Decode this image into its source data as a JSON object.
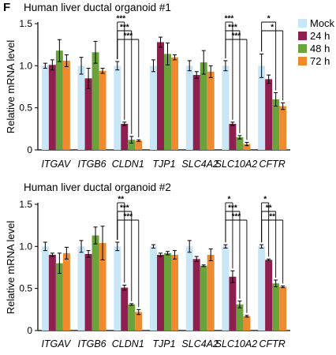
{
  "panel_label": "F",
  "colors": {
    "Mock": "#c9e6f7",
    "24 h": "#8e1f4f",
    "48 h": "#6aa23c",
    "72 h": "#f08a2e"
  },
  "legend": [
    "Mock",
    "24 h",
    "48 h",
    "72 h"
  ],
  "chart_data": [
    {
      "type": "bar",
      "title": "Human liver ductal organoid #1",
      "ylabel": "Relative mRNA level",
      "ylim": [
        0,
        1.5
      ],
      "yticks": [
        "0",
        "0.5",
        "1.0",
        "1.5"
      ],
      "categories": [
        "ITGAV",
        "ITGB6",
        "CLDN1",
        "TJP1",
        "SLC4A2",
        "SLC10A2",
        "CFTR"
      ],
      "series": [
        {
          "name": "Mock",
          "values": [
            1.0,
            1.0,
            1.0,
            1.0,
            1.0,
            1.0,
            1.0
          ],
          "errors": [
            0.03,
            0.1,
            0.05,
            0.07,
            0.06,
            0.06,
            0.14
          ]
        },
        {
          "name": "24 h",
          "values": [
            1.01,
            0.85,
            0.31,
            1.28,
            0.89,
            0.31,
            0.84
          ],
          "errors": [
            0.06,
            0.12,
            0.02,
            0.06,
            0.04,
            0.02,
            0.05
          ]
        },
        {
          "name": "48 h",
          "values": [
            1.18,
            1.16,
            0.12,
            1.14,
            1.04,
            0.15,
            0.6
          ],
          "errors": [
            0.13,
            0.13,
            0.04,
            0.13,
            0.14,
            0.02,
            0.08
          ]
        },
        {
          "name": "72 h",
          "values": [
            1.06,
            0.94,
            0.11,
            1.1,
            0.93,
            0.07,
            0.52
          ],
          "errors": [
            0.07,
            0.03,
            0.01,
            0.03,
            0.07,
            0.02,
            0.04
          ]
        }
      ],
      "significance": [
        {
          "category": "CLDN1",
          "compare": "24 h",
          "label": "***"
        },
        {
          "category": "CLDN1",
          "compare": "48 h",
          "label": "***"
        },
        {
          "category": "CLDN1",
          "compare": "72 h",
          "label": "***"
        },
        {
          "category": "SLC10A2",
          "compare": "24 h",
          "label": "***"
        },
        {
          "category": "SLC10A2",
          "compare": "48 h",
          "label": "***"
        },
        {
          "category": "SLC10A2",
          "compare": "72 h",
          "label": "***"
        },
        {
          "category": "CFTR",
          "compare": "48 h",
          "label": "*"
        },
        {
          "category": "CFTR",
          "compare": "72 h",
          "label": "*"
        }
      ]
    },
    {
      "type": "bar",
      "title": "Human liver ductal organoid #2",
      "ylabel": "Relative mRNA level",
      "ylim": [
        0,
        1.5
      ],
      "yticks": [
        "0",
        "0.5",
        "1.0",
        "1.5"
      ],
      "categories": [
        "ITGAV",
        "ITGB6",
        "CLDN1",
        "TJP1",
        "SLC4A2",
        "SLC10A2",
        "CFTR"
      ],
      "series": [
        {
          "name": "Mock",
          "values": [
            1.0,
            1.0,
            1.0,
            1.0,
            1.0,
            1.0,
            1.0
          ],
          "errors": [
            0.05,
            0.07,
            0.05,
            0.02,
            0.07,
            0.02,
            0.02
          ]
        },
        {
          "name": "24 h",
          "values": [
            0.9,
            0.91,
            0.51,
            0.9,
            0.85,
            0.64,
            0.84
          ],
          "errors": [
            0.02,
            0.04,
            0.03,
            0.02,
            0.03,
            0.07,
            0.01
          ]
        },
        {
          "name": "48 h",
          "values": [
            0.8,
            1.13,
            0.31,
            0.92,
            0.77,
            0.31,
            0.56
          ],
          "errors": [
            0.12,
            0.1,
            0.01,
            0.02,
            0.01,
            0.04,
            0.04
          ]
        },
        {
          "name": "72 h",
          "values": [
            0.92,
            1.04,
            0.22,
            0.9,
            0.9,
            0.17,
            0.52
          ],
          "errors": [
            0.07,
            0.2,
            0.03,
            0.05,
            0.07,
            0.01,
            0.01
          ]
        }
      ],
      "significance": [
        {
          "category": "CLDN1",
          "compare": "24 h",
          "label": "**"
        },
        {
          "category": "CLDN1",
          "compare": "48 h",
          "label": "***"
        },
        {
          "category": "CLDN1",
          "compare": "72 h",
          "label": "***"
        },
        {
          "category": "SLC10A2",
          "compare": "24 h",
          "label": "*"
        },
        {
          "category": "SLC10A2",
          "compare": "48 h",
          "label": "***"
        },
        {
          "category": "SLC10A2",
          "compare": "72 h",
          "label": "***"
        },
        {
          "category": "CFTR",
          "compare": "24 h",
          "label": "*"
        },
        {
          "category": "CFTR",
          "compare": "48 h",
          "label": "**"
        },
        {
          "category": "CFTR",
          "compare": "72 h",
          "label": "**"
        }
      ]
    }
  ]
}
